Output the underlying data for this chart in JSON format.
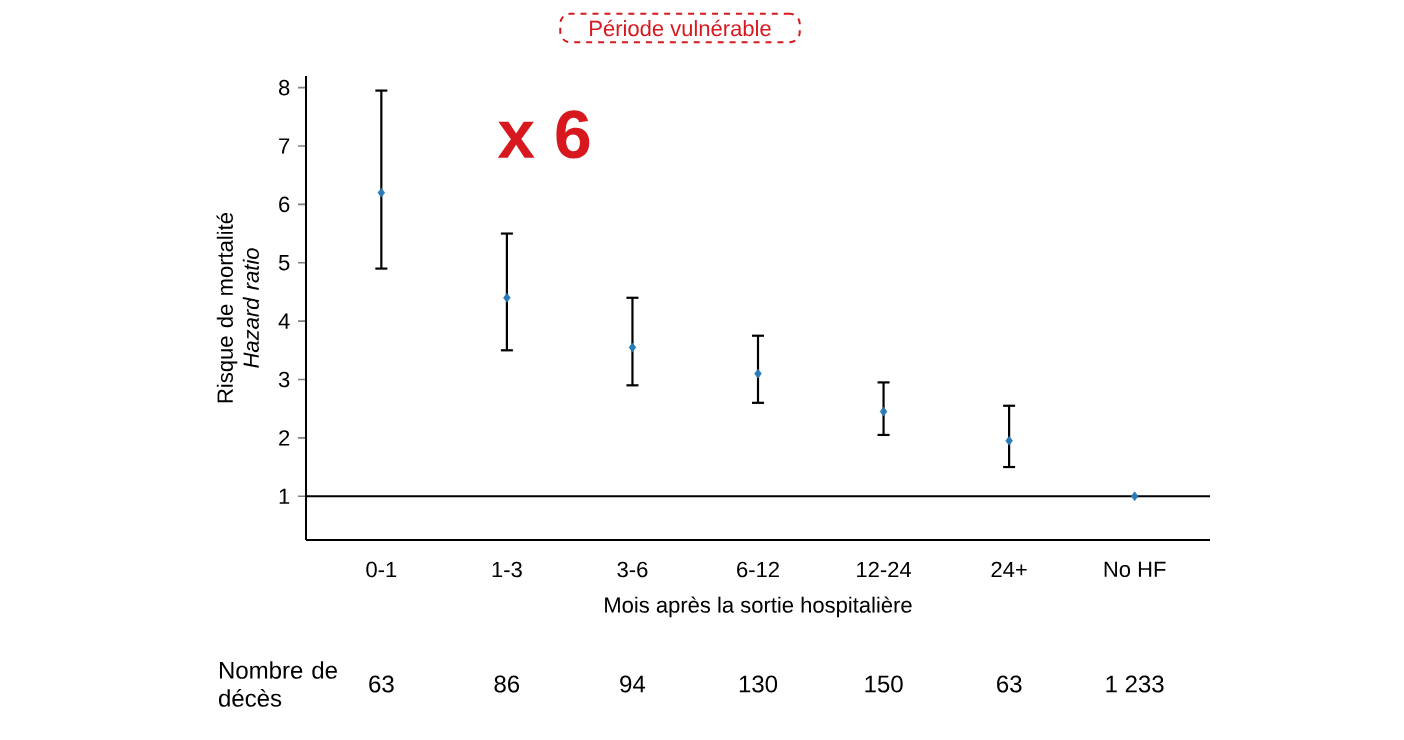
{
  "chart_data": {
    "type": "scatter",
    "ylabel": "Risque de mortalité *Hazard ratio*",
    "xlabel": "Mois après la sortie hospitalière",
    "categories": [
      "0-1",
      "1-3",
      "3-6",
      "6-12",
      "12-24",
      "24+",
      "No HF"
    ],
    "values": [
      6.2,
      4.4,
      3.55,
      3.1,
      2.45,
      1.95,
      1
    ],
    "errors": [
      [
        4.9,
        7.95
      ],
      [
        3.5,
        5.5
      ],
      [
        2.9,
        4.4
      ],
      [
        2.6,
        3.75
      ],
      [
        2.05,
        2.95
      ],
      [
        1.5,
        2.55
      ],
      null
    ],
    "color": "#2a7ab8",
    "marker": "diamond",
    "ylim": [
      0.25,
      8.2
    ],
    "yticks": [
      1,
      2,
      3,
      4,
      5,
      6,
      7,
      8
    ],
    "ref_lines": [
      {
        "axis": "y",
        "value": 1,
        "color": "#000000"
      }
    ],
    "annotations": [
      "Période vulnérable",
      "x 6",
      "Nombre de décès",
      "63",
      "86",
      "94",
      "130",
      "150",
      "63",
      "1 233"
    ]
  }
}
